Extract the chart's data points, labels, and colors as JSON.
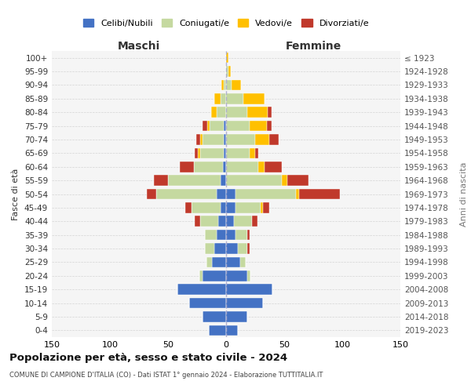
{
  "age_groups": [
    "0-4",
    "5-9",
    "10-14",
    "15-19",
    "20-24",
    "25-29",
    "30-34",
    "35-39",
    "40-44",
    "45-49",
    "50-54",
    "55-59",
    "60-64",
    "65-69",
    "70-74",
    "75-79",
    "80-84",
    "85-89",
    "90-94",
    "95-99",
    "100+"
  ],
  "birth_years": [
    "2019-2023",
    "2014-2018",
    "2009-2013",
    "2004-2008",
    "1999-2003",
    "1994-1998",
    "1989-1993",
    "1984-1988",
    "1979-1983",
    "1974-1978",
    "1969-1973",
    "1964-1968",
    "1959-1963",
    "1954-1958",
    "1949-1953",
    "1944-1948",
    "1939-1943",
    "1934-1938",
    "1929-1933",
    "1924-1928",
    "≤ 1923"
  ],
  "colors": {
    "celibi": "#4472c4",
    "coniugati": "#c5d9a0",
    "vedovi": "#ffc000",
    "divorziati": "#c0392b",
    "background": "#f5f5f5",
    "grid": "#cccccc",
    "dashed": "#aaaacc"
  },
  "maschi": {
    "celibi": [
      15,
      20,
      32,
      42,
      20,
      12,
      10,
      8,
      7,
      5,
      8,
      5,
      3,
      2,
      2,
      2,
      0,
      0,
      0,
      0,
      0
    ],
    "coniugati": [
      0,
      0,
      0,
      0,
      3,
      5,
      8,
      10,
      15,
      25,
      52,
      45,
      25,
      20,
      18,
      12,
      8,
      5,
      2,
      0,
      0
    ],
    "vedovi": [
      0,
      0,
      0,
      0,
      0,
      0,
      0,
      0,
      0,
      0,
      0,
      0,
      0,
      2,
      2,
      2,
      5,
      5,
      2,
      0,
      0
    ],
    "divorziati": [
      0,
      0,
      0,
      0,
      0,
      0,
      0,
      0,
      5,
      5,
      8,
      12,
      12,
      3,
      4,
      4,
      0,
      0,
      0,
      0,
      0
    ]
  },
  "femmine": {
    "celibi": [
      10,
      18,
      32,
      40,
      18,
      12,
      10,
      8,
      7,
      8,
      8,
      0,
      0,
      0,
      0,
      0,
      0,
      0,
      0,
      0,
      0
    ],
    "coniugati": [
      0,
      0,
      0,
      0,
      3,
      5,
      8,
      10,
      15,
      22,
      52,
      48,
      28,
      20,
      25,
      20,
      18,
      15,
      5,
      2,
      0
    ],
    "vedovi": [
      0,
      0,
      0,
      0,
      0,
      0,
      0,
      0,
      0,
      2,
      3,
      5,
      5,
      5,
      12,
      15,
      18,
      18,
      8,
      2,
      2
    ],
    "divorziati": [
      0,
      0,
      0,
      0,
      0,
      0,
      2,
      2,
      5,
      5,
      35,
      18,
      15,
      3,
      8,
      4,
      3,
      0,
      0,
      0,
      0
    ]
  },
  "xlim": 150,
  "title_main": "Popolazione per età, sesso e stato civile - 2024",
  "title_sub": "COMUNE DI CAMPIONE D'ITALIA (CO) - Dati ISTAT 1° gennaio 2024 - Elaborazione TUTTITALIA.IT",
  "ylabel_left": "Fasce di età",
  "ylabel_right": "Anni di nascita",
  "label_maschi": "Maschi",
  "label_femmine": "Femmine",
  "legend_labels": [
    "Celibi/Nubili",
    "Coniugati/e",
    "Vedovi/e",
    "Divorziati/e"
  ]
}
